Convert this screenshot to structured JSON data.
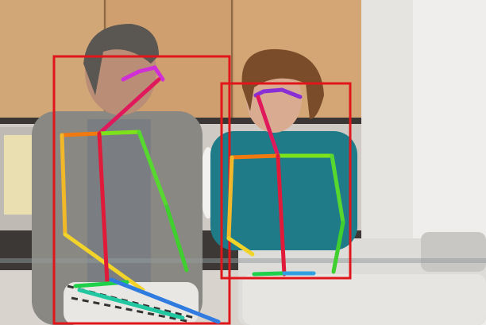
{
  "image": {
    "description_hidden": "",
    "box_color": "#e0161b",
    "people": [
      {
        "box": "person-1",
        "keypoints_visible": true
      },
      {
        "box": "person-2",
        "keypoints_visible": true
      }
    ],
    "limb_colors": {
      "head": "#d12fd6",
      "face_to_neck": "#e0185c",
      "shoulders_left": "#f07a10",
      "shoulders_right": "#7ee21b",
      "arm_left": "#f1c92a",
      "arm_right": "#56d82e",
      "torso": "#e01b3a",
      "hip_left": "#1fd04a",
      "hip_right": "#2f7be0",
      "leg": "#20c7a0"
    }
  }
}
